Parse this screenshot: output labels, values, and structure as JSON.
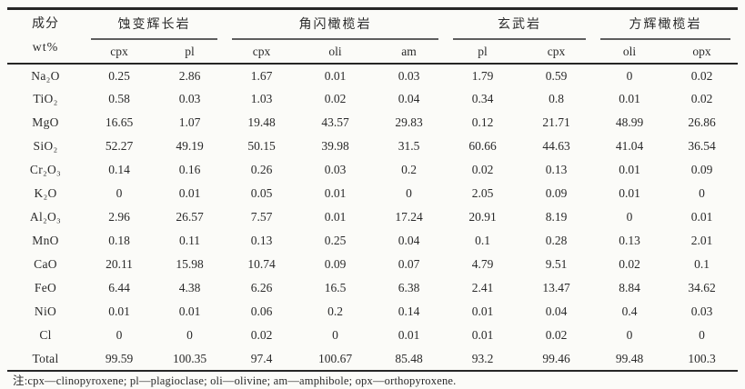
{
  "colors": {
    "background": "#fbfbf8",
    "text": "#2a2a2a",
    "rule_heavy": "#262626",
    "rule_light": "#5e5e5e"
  },
  "table": {
    "header": {
      "line1": "成分",
      "line2": "wt%"
    },
    "groups": [
      {
        "label": "蚀变辉长岩",
        "columns": [
          "cpx",
          "pl"
        ]
      },
      {
        "label": "角闪橄榄岩",
        "columns": [
          "cpx",
          "oli",
          "am"
        ]
      },
      {
        "label": "玄武岩",
        "columns": [
          "pl",
          "cpx"
        ]
      },
      {
        "label": "方辉橄榄岩",
        "columns": [
          "oli",
          "opx"
        ]
      }
    ],
    "rows": [
      {
        "label": "Na₂O",
        "values": [
          "0.25",
          "2.86",
          "1.67",
          "0.01",
          "0.03",
          "1.79",
          "0.59",
          "0",
          "0.02"
        ]
      },
      {
        "label": "TiO₂",
        "values": [
          "0.58",
          "0.03",
          "1.03",
          "0.02",
          "0.04",
          "0.34",
          "0.8",
          "0.01",
          "0.02"
        ]
      },
      {
        "label": "MgO",
        "values": [
          "16.65",
          "1.07",
          "19.48",
          "43.57",
          "29.83",
          "0.12",
          "21.71",
          "48.99",
          "26.86"
        ]
      },
      {
        "label": "SiO₂",
        "values": [
          "52.27",
          "49.19",
          "50.15",
          "39.98",
          "31.5",
          "60.66",
          "44.63",
          "41.04",
          "36.54"
        ]
      },
      {
        "label": "Cr₂O₃",
        "values": [
          "0.14",
          "0.16",
          "0.26",
          "0.03",
          "0.2",
          "0.02",
          "0.13",
          "0.01",
          "0.09"
        ]
      },
      {
        "label": "K₂O",
        "values": [
          "0",
          "0.01",
          "0.05",
          "0.01",
          "0",
          "2.05",
          "0.09",
          "0.01",
          "0"
        ]
      },
      {
        "label": "Al₂O₃",
        "values": [
          "2.96",
          "26.57",
          "7.57",
          "0.01",
          "17.24",
          "20.91",
          "8.19",
          "0",
          "0.01"
        ]
      },
      {
        "label": "MnO",
        "values": [
          "0.18",
          "0.11",
          "0.13",
          "0.25",
          "0.04",
          "0.1",
          "0.28",
          "0.13",
          "2.01"
        ]
      },
      {
        "label": "CaO",
        "values": [
          "20.11",
          "15.98",
          "10.74",
          "0.09",
          "0.07",
          "4.79",
          "9.51",
          "0.02",
          "0.1"
        ]
      },
      {
        "label": "FeO",
        "values": [
          "6.44",
          "4.38",
          "6.26",
          "16.5",
          "6.38",
          "2.41",
          "13.47",
          "8.84",
          "34.62"
        ]
      },
      {
        "label": "NiO",
        "values": [
          "0.01",
          "0.01",
          "0.06",
          "0.2",
          "0.14",
          "0.01",
          "0.04",
          "0.4",
          "0.03"
        ]
      },
      {
        "label": "Cl",
        "values": [
          "0",
          "0",
          "0.02",
          "0",
          "0.01",
          "0.01",
          "0.02",
          "0",
          "0"
        ]
      },
      {
        "label": "Total",
        "values": [
          "99.59",
          "100.35",
          "97.4",
          "100.67",
          "85.48",
          "93.2",
          "99.46",
          "99.48",
          "100.3"
        ]
      }
    ],
    "note": "注:cpx—clinopyroxene; pl—plagioclase; oli—olivine; am—amphibole; opx—orthopyroxene."
  }
}
